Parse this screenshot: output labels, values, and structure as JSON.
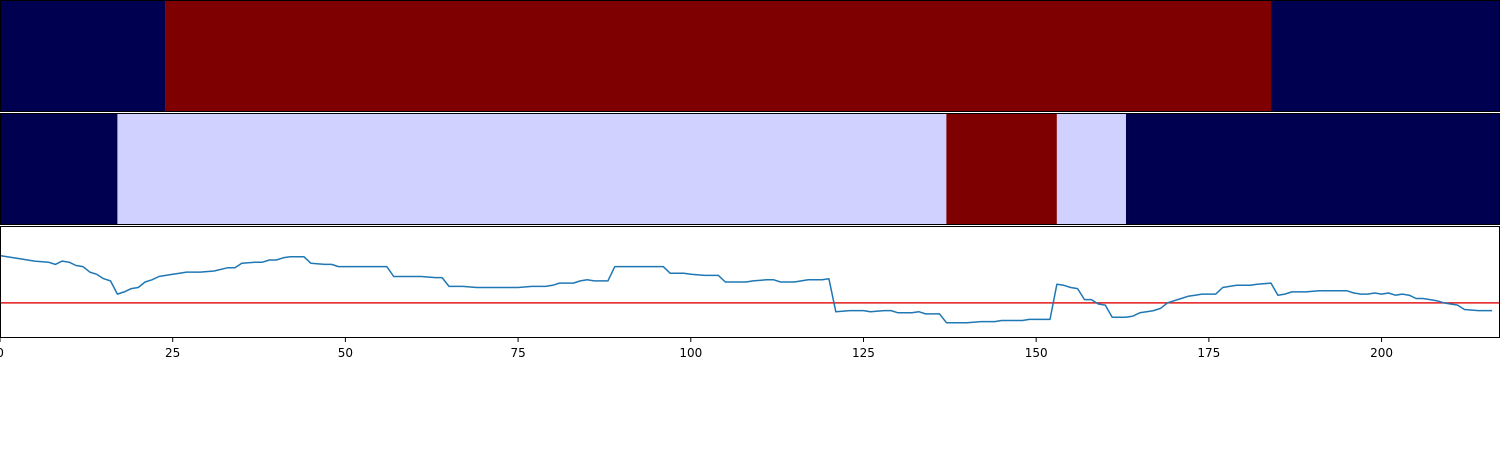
{
  "chart_data": [
    {
      "type": "heatmap",
      "colors": {
        "low": "#000050",
        "high": "#7f0000"
      },
      "xlim": [
        0,
        217
      ],
      "segments": [
        {
          "start": 0,
          "end": 24,
          "level": "low"
        },
        {
          "start": 24,
          "end": 184,
          "level": "high"
        },
        {
          "start": 184,
          "end": 217,
          "level": "low"
        }
      ]
    },
    {
      "type": "heatmap",
      "colors": {
        "low": "#000050",
        "mid": "#d1d1ff",
        "high": "#7f0000"
      },
      "xlim": [
        0,
        217
      ],
      "segments": [
        {
          "start": 0,
          "end": 17,
          "level": "low"
        },
        {
          "start": 17,
          "end": 137,
          "level": "mid"
        },
        {
          "start": 137,
          "end": 153,
          "level": "high"
        },
        {
          "start": 153,
          "end": 163,
          "level": "mid"
        },
        {
          "start": 163,
          "end": 217,
          "level": "low"
        }
      ]
    },
    {
      "type": "line",
      "xlim": [
        0,
        217
      ],
      "ylim": [
        0,
        1
      ],
      "x_ticks": [
        0,
        25,
        50,
        75,
        100,
        125,
        150,
        175,
        200
      ],
      "threshold": 0.31,
      "line_color": "#1f77b4",
      "threshold_color": "#e31a1c",
      "series": [
        {
          "points": [
            [
              0,
              0.74
            ],
            [
              3,
              0.71
            ],
            [
              5,
              0.69
            ],
            [
              7,
              0.68
            ],
            [
              8,
              0.66
            ],
            [
              9,
              0.69
            ],
            [
              10,
              0.68
            ],
            [
              11,
              0.65
            ],
            [
              12,
              0.64
            ],
            [
              13,
              0.59
            ],
            [
              14,
              0.57
            ],
            [
              15,
              0.53
            ],
            [
              16,
              0.51
            ],
            [
              17,
              0.39
            ],
            [
              18,
              0.41
            ],
            [
              19,
              0.44
            ],
            [
              20,
              0.45
            ],
            [
              21,
              0.5
            ],
            [
              22,
              0.52
            ],
            [
              23,
              0.55
            ],
            [
              25,
              0.57
            ],
            [
              26,
              0.58
            ],
            [
              27,
              0.59
            ],
            [
              29,
              0.59
            ],
            [
              31,
              0.6
            ],
            [
              33,
              0.63
            ],
            [
              34,
              0.63
            ],
            [
              35,
              0.67
            ],
            [
              37,
              0.68
            ],
            [
              38,
              0.68
            ],
            [
              39,
              0.7
            ],
            [
              40,
              0.7
            ],
            [
              41,
              0.72
            ],
            [
              42,
              0.73
            ],
            [
              43,
              0.73
            ],
            [
              44,
              0.73
            ],
            [
              45,
              0.67
            ],
            [
              47,
              0.66
            ],
            [
              48,
              0.66
            ],
            [
              49,
              0.64
            ],
            [
              51,
              0.64
            ],
            [
              53,
              0.64
            ],
            [
              55,
              0.64
            ],
            [
              56,
              0.64
            ],
            [
              57,
              0.55
            ],
            [
              59,
              0.55
            ],
            [
              61,
              0.55
            ],
            [
              63,
              0.54
            ],
            [
              64,
              0.54
            ],
            [
              65,
              0.46
            ],
            [
              67,
              0.46
            ],
            [
              69,
              0.45
            ],
            [
              71,
              0.45
            ],
            [
              72,
              0.45
            ],
            [
              73,
              0.45
            ],
            [
              75,
              0.45
            ],
            [
              77,
              0.46
            ],
            [
              79,
              0.46
            ],
            [
              80,
              0.47
            ],
            [
              81,
              0.49
            ],
            [
              83,
              0.49
            ],
            [
              84,
              0.51
            ],
            [
              85,
              0.52
            ],
            [
              86,
              0.51
            ],
            [
              88,
              0.51
            ],
            [
              89,
              0.64
            ],
            [
              91,
              0.64
            ],
            [
              93,
              0.64
            ],
            [
              95,
              0.64
            ],
            [
              96,
              0.64
            ],
            [
              97,
              0.58
            ],
            [
              99,
              0.58
            ],
            [
              100,
              0.57
            ],
            [
              102,
              0.56
            ],
            [
              104,
              0.56
            ],
            [
              105,
              0.5
            ],
            [
              107,
              0.5
            ],
            [
              108,
              0.5
            ],
            [
              109,
              0.51
            ],
            [
              111,
              0.52
            ],
            [
              112,
              0.52
            ],
            [
              113,
              0.5
            ],
            [
              115,
              0.5
            ],
            [
              116,
              0.51
            ],
            [
              117,
              0.52
            ],
            [
              119,
              0.52
            ],
            [
              120,
              0.53
            ],
            [
              121,
              0.23
            ],
            [
              123,
              0.24
            ],
            [
              125,
              0.24
            ],
            [
              126,
              0.23
            ],
            [
              128,
              0.24
            ],
            [
              129,
              0.24
            ],
            [
              130,
              0.22
            ],
            [
              132,
              0.22
            ],
            [
              133,
              0.23
            ],
            [
              134,
              0.21
            ],
            [
              135,
              0.21
            ],
            [
              136,
              0.21
            ],
            [
              137,
              0.13
            ],
            [
              139,
              0.13
            ],
            [
              140,
              0.13
            ],
            [
              142,
              0.14
            ],
            [
              144,
              0.14
            ],
            [
              145,
              0.15
            ],
            [
              147,
              0.15
            ],
            [
              148,
              0.15
            ],
            [
              149,
              0.16
            ],
            [
              151,
              0.16
            ],
            [
              152,
              0.16
            ],
            [
              153,
              0.48
            ],
            [
              154,
              0.47
            ],
            [
              155,
              0.45
            ],
            [
              156,
              0.44
            ],
            [
              157,
              0.34
            ],
            [
              158,
              0.34
            ],
            [
              159,
              0.3
            ],
            [
              160,
              0.29
            ],
            [
              161,
              0.18
            ],
            [
              162,
              0.18
            ],
            [
              163,
              0.18
            ],
            [
              164,
              0.19
            ],
            [
              165,
              0.22
            ],
            [
              166,
              0.23
            ],
            [
              167,
              0.24
            ],
            [
              168,
              0.26
            ],
            [
              169,
              0.31
            ],
            [
              170,
              0.33
            ],
            [
              171,
              0.35
            ],
            [
              172,
              0.37
            ],
            [
              173,
              0.38
            ],
            [
              174,
              0.39
            ],
            [
              176,
              0.39
            ],
            [
              177,
              0.45
            ],
            [
              178,
              0.46
            ],
            [
              179,
              0.47
            ],
            [
              181,
              0.47
            ],
            [
              182,
              0.48
            ],
            [
              184,
              0.49
            ],
            [
              185,
              0.38
            ],
            [
              186,
              0.39
            ],
            [
              187,
              0.41
            ],
            [
              189,
              0.41
            ],
            [
              191,
              0.42
            ],
            [
              193,
              0.42
            ],
            [
              195,
              0.42
            ],
            [
              196,
              0.4
            ],
            [
              197,
              0.39
            ],
            [
              198,
              0.39
            ],
            [
              199,
              0.4
            ],
            [
              200,
              0.39
            ],
            [
              201,
              0.4
            ],
            [
              202,
              0.38
            ],
            [
              203,
              0.39
            ],
            [
              204,
              0.38
            ],
            [
              205,
              0.35
            ],
            [
              206,
              0.35
            ],
            [
              207,
              0.34
            ],
            [
              208,
              0.33
            ],
            [
              209,
              0.31
            ],
            [
              210,
              0.3
            ],
            [
              211,
              0.29
            ],
            [
              212,
              0.25
            ],
            [
              214,
              0.24
            ],
            [
              216,
              0.24
            ]
          ]
        }
      ]
    }
  ]
}
